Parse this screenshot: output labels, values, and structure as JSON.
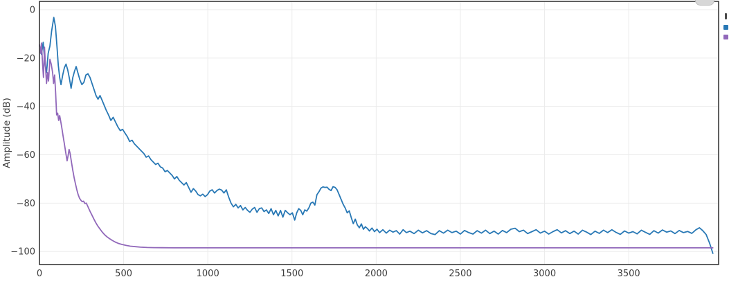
{
  "figure": {
    "background": "#ffffff"
  },
  "style": {
    "spine_color": "#3a3a3a",
    "grid_color": "#ebebeb",
    "tick_color": "#3d3d3d",
    "line_width": 1.8
  },
  "controls": {
    "top_button": "clipped-gray-pill-button",
    "side_icons": [
      "menu-bar-icon",
      "series1-legend-swatch",
      "series2-legend-swatch"
    ]
  },
  "chart_data": {
    "type": "line",
    "title": "",
    "xlabel": "",
    "ylabel": "Amplitude (dB)",
    "xlim": [
      0,
      4034
    ],
    "ylim": [
      -105.4,
      3.44
    ],
    "x_ticks": [
      0,
      500,
      1000,
      1500,
      2000,
      2500,
      3000,
      3500
    ],
    "y_ticks": [
      0,
      -20,
      -40,
      -60,
      -80,
      -100
    ],
    "grid": true,
    "legend_position": "right-clipped",
    "series": [
      {
        "name": "series-1-blue",
        "color": "#2878b5",
        "points": [
          [
            0,
            -15
          ],
          [
            12,
            -18.5
          ],
          [
            22,
            -13.5
          ],
          [
            32,
            -22
          ],
          [
            42,
            -26
          ],
          [
            52,
            -18
          ],
          [
            62,
            -15
          ],
          [
            72,
            -9
          ],
          [
            85,
            -3.2
          ],
          [
            95,
            -7
          ],
          [
            105,
            -16
          ],
          [
            112,
            -23
          ],
          [
            120,
            -28
          ],
          [
            128,
            -31
          ],
          [
            138,
            -27
          ],
          [
            148,
            -24
          ],
          [
            158,
            -22.5
          ],
          [
            168,
            -25
          ],
          [
            178,
            -28.5
          ],
          [
            188,
            -32.5
          ],
          [
            198,
            -28
          ],
          [
            208,
            -25.5
          ],
          [
            218,
            -23.5
          ],
          [
            228,
            -26
          ],
          [
            240,
            -29
          ],
          [
            252,
            -31
          ],
          [
            264,
            -30
          ],
          [
            276,
            -27
          ],
          [
            288,
            -26.5
          ],
          [
            300,
            -28
          ],
          [
            312,
            -30.5
          ],
          [
            324,
            -33
          ],
          [
            336,
            -35.5
          ],
          [
            348,
            -37
          ],
          [
            360,
            -35.5
          ],
          [
            372,
            -37.5
          ],
          [
            384,
            -39.5
          ],
          [
            396,
            -41.5
          ],
          [
            410,
            -43.5
          ],
          [
            424,
            -45.8
          ],
          [
            438,
            -44.5
          ],
          [
            452,
            -46.5
          ],
          [
            466,
            -48.5
          ],
          [
            480,
            -50
          ],
          [
            494,
            -49.5
          ],
          [
            508,
            -51
          ],
          [
            522,
            -52.5
          ],
          [
            536,
            -54.5
          ],
          [
            550,
            -54
          ],
          [
            564,
            -55.5
          ],
          [
            578,
            -56.5
          ],
          [
            592,
            -57.5
          ],
          [
            606,
            -58.5
          ],
          [
            620,
            -59.5
          ],
          [
            634,
            -61
          ],
          [
            648,
            -60.5
          ],
          [
            662,
            -62
          ],
          [
            676,
            -63
          ],
          [
            690,
            -64
          ],
          [
            704,
            -63.5
          ],
          [
            718,
            -65
          ],
          [
            732,
            -65.5
          ],
          [
            746,
            -67
          ],
          [
            760,
            -66.5
          ],
          [
            774,
            -67.5
          ],
          [
            788,
            -68.5
          ],
          [
            802,
            -70
          ],
          [
            816,
            -69
          ],
          [
            830,
            -70.5
          ],
          [
            844,
            -71.5
          ],
          [
            858,
            -72.5
          ],
          [
            872,
            -71.5
          ],
          [
            886,
            -73.5
          ],
          [
            900,
            -75.5
          ],
          [
            914,
            -74
          ],
          [
            928,
            -75
          ],
          [
            942,
            -76.5
          ],
          [
            956,
            -77
          ],
          [
            970,
            -76.3
          ],
          [
            984,
            -77.3
          ],
          [
            998,
            -76.5
          ],
          [
            1012,
            -75
          ],
          [
            1026,
            -74.5
          ],
          [
            1040,
            -75.8
          ],
          [
            1054,
            -74.8
          ],
          [
            1068,
            -74.2
          ],
          [
            1082,
            -74.6
          ],
          [
            1096,
            -75.8
          ],
          [
            1110,
            -74.5
          ],
          [
            1124,
            -77.5
          ],
          [
            1138,
            -80
          ],
          [
            1152,
            -81.5
          ],
          [
            1166,
            -80.5
          ],
          [
            1180,
            -82
          ],
          [
            1194,
            -81
          ],
          [
            1208,
            -82.8
          ],
          [
            1222,
            -81.8
          ],
          [
            1236,
            -83
          ],
          [
            1250,
            -83.8
          ],
          [
            1264,
            -82.5
          ],
          [
            1278,
            -81.8
          ],
          [
            1292,
            -83.8
          ],
          [
            1306,
            -82.3
          ],
          [
            1320,
            -82
          ],
          [
            1334,
            -83.5
          ],
          [
            1348,
            -82.8
          ],
          [
            1362,
            -84.3
          ],
          [
            1376,
            -82.3
          ],
          [
            1390,
            -84.8
          ],
          [
            1404,
            -83
          ],
          [
            1418,
            -85.3
          ],
          [
            1432,
            -83
          ],
          [
            1446,
            -85.8
          ],
          [
            1460,
            -83
          ],
          [
            1474,
            -84
          ],
          [
            1488,
            -84.8
          ],
          [
            1502,
            -84
          ],
          [
            1516,
            -87
          ],
          [
            1528,
            -84
          ],
          [
            1540,
            -82.3
          ],
          [
            1552,
            -83
          ],
          [
            1564,
            -84.8
          ],
          [
            1576,
            -82.8
          ],
          [
            1588,
            -83.3
          ],
          [
            1600,
            -82
          ],
          [
            1612,
            -80
          ],
          [
            1624,
            -79.6
          ],
          [
            1636,
            -80.8
          ],
          [
            1648,
            -76.5
          ],
          [
            1660,
            -75.3
          ],
          [
            1672,
            -73.8
          ],
          [
            1684,
            -73.3
          ],
          [
            1696,
            -73.5
          ],
          [
            1708,
            -73.4
          ],
          [
            1720,
            -74.3
          ],
          [
            1732,
            -74.8
          ],
          [
            1744,
            -73.2
          ],
          [
            1756,
            -73.5
          ],
          [
            1768,
            -74.5
          ],
          [
            1780,
            -76.5
          ],
          [
            1792,
            -78.5
          ],
          [
            1804,
            -80.5
          ],
          [
            1816,
            -82
          ],
          [
            1828,
            -84
          ],
          [
            1840,
            -83.2
          ],
          [
            1852,
            -86
          ],
          [
            1864,
            -88.5
          ],
          [
            1876,
            -86.6
          ],
          [
            1888,
            -89
          ],
          [
            1900,
            -90.2
          ],
          [
            1912,
            -88.6
          ],
          [
            1924,
            -90.8
          ],
          [
            1936,
            -89.8
          ],
          [
            1948,
            -90.5
          ],
          [
            1960,
            -91.5
          ],
          [
            1975,
            -90.3
          ],
          [
            1990,
            -91.8
          ],
          [
            2005,
            -90.8
          ],
          [
            2020,
            -92.2
          ],
          [
            2040,
            -91
          ],
          [
            2060,
            -92.4
          ],
          [
            2080,
            -91.2
          ],
          [
            2100,
            -92
          ],
          [
            2120,
            -91.4
          ],
          [
            2140,
            -92.8
          ],
          [
            2160,
            -91
          ],
          [
            2180,
            -92.2
          ],
          [
            2200,
            -91.6
          ],
          [
            2225,
            -92.6
          ],
          [
            2250,
            -91.2
          ],
          [
            2275,
            -92.3
          ],
          [
            2300,
            -91.4
          ],
          [
            2325,
            -92.6
          ],
          [
            2350,
            -93
          ],
          [
            2375,
            -91.4
          ],
          [
            2400,
            -92.4
          ],
          [
            2425,
            -91.2
          ],
          [
            2450,
            -92.2
          ],
          [
            2475,
            -91.6
          ],
          [
            2500,
            -92.8
          ],
          [
            2525,
            -91.3
          ],
          [
            2550,
            -92.2
          ],
          [
            2575,
            -92.8
          ],
          [
            2600,
            -91.4
          ],
          [
            2625,
            -92.4
          ],
          [
            2650,
            -91.2
          ],
          [
            2675,
            -92.6
          ],
          [
            2700,
            -91.6
          ],
          [
            2725,
            -92.8
          ],
          [
            2750,
            -91.3
          ],
          [
            2775,
            -92.2
          ],
          [
            2800,
            -90.8
          ],
          [
            2825,
            -90.4
          ],
          [
            2850,
            -91.8
          ],
          [
            2875,
            -91.2
          ],
          [
            2900,
            -92.6
          ],
          [
            2925,
            -91.8
          ],
          [
            2950,
            -91
          ],
          [
            2975,
            -92.4
          ],
          [
            3000,
            -91.6
          ],
          [
            3025,
            -92.8
          ],
          [
            3050,
            -91.8
          ],
          [
            3075,
            -91
          ],
          [
            3100,
            -92.3
          ],
          [
            3125,
            -91.4
          ],
          [
            3150,
            -92.6
          ],
          [
            3175,
            -91.6
          ],
          [
            3200,
            -92.8
          ],
          [
            3225,
            -91.2
          ],
          [
            3250,
            -92
          ],
          [
            3275,
            -93
          ],
          [
            3300,
            -91.6
          ],
          [
            3325,
            -92.5
          ],
          [
            3350,
            -91.2
          ],
          [
            3375,
            -92.2
          ],
          [
            3400,
            -91
          ],
          [
            3425,
            -92.1
          ],
          [
            3450,
            -92.9
          ],
          [
            3475,
            -91.5
          ],
          [
            3500,
            -92.4
          ],
          [
            3525,
            -91.8
          ],
          [
            3550,
            -92.7
          ],
          [
            3575,
            -91.2
          ],
          [
            3600,
            -92.1
          ],
          [
            3625,
            -92.9
          ],
          [
            3650,
            -91.4
          ],
          [
            3675,
            -92.4
          ],
          [
            3700,
            -91.1
          ],
          [
            3725,
            -92
          ],
          [
            3750,
            -91.5
          ],
          [
            3775,
            -92.6
          ],
          [
            3800,
            -91.3
          ],
          [
            3825,
            -92.2
          ],
          [
            3850,
            -91.7
          ],
          [
            3875,
            -92.5
          ],
          [
            3900,
            -91
          ],
          [
            3920,
            -90.2
          ],
          [
            3940,
            -91.4
          ],
          [
            3960,
            -93
          ],
          [
            3980,
            -96.5
          ],
          [
            4000,
            -100.8
          ]
        ]
      },
      {
        "name": "series-2-purple",
        "color": "#9168ba",
        "points": [
          [
            0,
            -14.5
          ],
          [
            6,
            -18
          ],
          [
            12,
            -13.8
          ],
          [
            18,
            -22
          ],
          [
            24,
            -28
          ],
          [
            30,
            -15.5
          ],
          [
            36,
            -24
          ],
          [
            42,
            -30.5
          ],
          [
            48,
            -26
          ],
          [
            54,
            -29.5
          ],
          [
            62,
            -20.5
          ],
          [
            70,
            -22.5
          ],
          [
            78,
            -26
          ],
          [
            84,
            -30.5
          ],
          [
            90,
            -27
          ],
          [
            96,
            -34
          ],
          [
            102,
            -43.5
          ],
          [
            108,
            -42.8
          ],
          [
            114,
            -45.8
          ],
          [
            120,
            -43.8
          ],
          [
            126,
            -46
          ],
          [
            132,
            -48.5
          ],
          [
            140,
            -52
          ],
          [
            148,
            -55.5
          ],
          [
            156,
            -59
          ],
          [
            164,
            -62.5
          ],
          [
            170,
            -60.5
          ],
          [
            176,
            -57.8
          ],
          [
            182,
            -59.5
          ],
          [
            190,
            -63
          ],
          [
            198,
            -66.5
          ],
          [
            206,
            -69.5
          ],
          [
            214,
            -72
          ],
          [
            222,
            -74.5
          ],
          [
            230,
            -76.5
          ],
          [
            238,
            -78
          ],
          [
            246,
            -78.8
          ],
          [
            254,
            -79.4
          ],
          [
            262,
            -79.2
          ],
          [
            270,
            -80.2
          ],
          [
            278,
            -80
          ],
          [
            286,
            -81.2
          ],
          [
            294,
            -82.4
          ],
          [
            302,
            -83.6
          ],
          [
            312,
            -85
          ],
          [
            322,
            -86.4
          ],
          [
            334,
            -88
          ],
          [
            346,
            -89.4
          ],
          [
            358,
            -90.6
          ],
          [
            372,
            -91.9
          ],
          [
            386,
            -93
          ],
          [
            400,
            -93.9
          ],
          [
            416,
            -94.7
          ],
          [
            432,
            -95.4
          ],
          [
            450,
            -96.1
          ],
          [
            470,
            -96.7
          ],
          [
            490,
            -97.1
          ],
          [
            515,
            -97.5
          ],
          [
            540,
            -97.8
          ],
          [
            570,
            -98
          ],
          [
            600,
            -98.2
          ],
          [
            640,
            -98.35
          ],
          [
            680,
            -98.4
          ],
          [
            730,
            -98.45
          ],
          [
            800,
            -98.5
          ],
          [
            900,
            -98.5
          ],
          [
            1100,
            -98.5
          ],
          [
            1400,
            -98.5
          ],
          [
            1800,
            -98.5
          ],
          [
            2200,
            -98.5
          ],
          [
            2600,
            -98.5
          ],
          [
            3000,
            -98.5
          ],
          [
            3400,
            -98.5
          ],
          [
            3700,
            -98.5
          ],
          [
            4000,
            -98.5
          ]
        ]
      }
    ]
  }
}
